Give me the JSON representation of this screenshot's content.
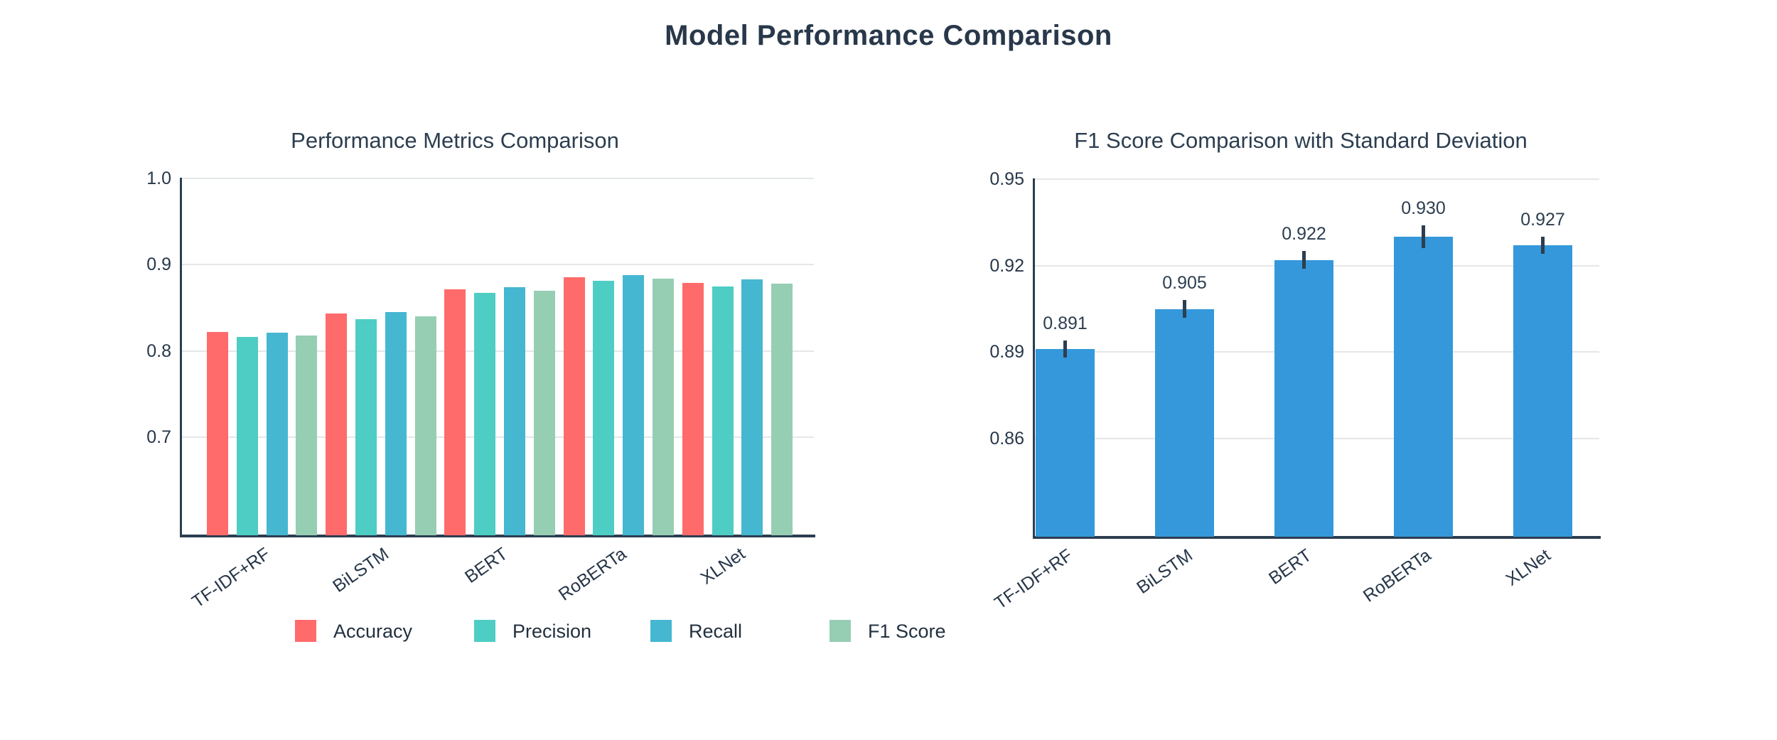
{
  "main_title": "Model Performance Comparison",
  "chart_data": [
    {
      "type": "bar",
      "title": "Performance Metrics Comparison",
      "categories": [
        "TF-IDF+RF",
        "BiLSTM",
        "BERT",
        "RoBERTa",
        "XLNet"
      ],
      "series": [
        {
          "name": "Accuracy",
          "color": "#FF6B6B",
          "values": [
            0.822,
            0.843,
            0.871,
            0.885,
            0.879
          ]
        },
        {
          "name": "Precision",
          "color": "#4ECDC4",
          "values": [
            0.816,
            0.837,
            0.867,
            0.881,
            0.875
          ]
        },
        {
          "name": "Recall",
          "color": "#45B7D1",
          "values": [
            0.821,
            0.845,
            0.874,
            0.888,
            0.883
          ]
        },
        {
          "name": "F1 Score",
          "color": "#96CEB4",
          "values": [
            0.818,
            0.84,
            0.87,
            0.884,
            0.878
          ]
        }
      ],
      "ylim": [
        0.586,
        1.0
      ],
      "yticks": [
        {
          "value": 1.0,
          "label": "1.0"
        },
        {
          "value": 0.9,
          "label": "0.9"
        },
        {
          "value": 0.8,
          "label": "0.8"
        },
        {
          "value": 0.7,
          "label": "0.7"
        }
      ],
      "grid": true,
      "legend_position": "bottom"
    },
    {
      "type": "bar",
      "title": "F1 Score Comparison with Standard Deviation",
      "categories": [
        "TF-IDF+RF",
        "BiLSTM",
        "BERT",
        "RoBERTa",
        "XLNet"
      ],
      "values": [
        0.891,
        0.905,
        0.922,
        0.93,
        0.927
      ],
      "value_labels": [
        "0.891",
        "0.905",
        "0.922",
        "0.930",
        "0.927"
      ],
      "errors": [
        0.003,
        0.003,
        0.003,
        0.004,
        0.003
      ],
      "bar_color": "#3498DB",
      "error_color": "#2c3e50",
      "ylim": [
        0.826,
        0.95
      ],
      "yticks": [
        {
          "value": 0.95,
          "label": "0.95"
        },
        {
          "value": 0.92,
          "label": "0.92"
        },
        {
          "value": 0.89,
          "label": "0.89"
        },
        {
          "value": 0.86,
          "label": "0.86"
        }
      ],
      "grid": true
    }
  ],
  "legend": {
    "items": [
      {
        "label": "Accuracy",
        "color": "#FF6B6B"
      },
      {
        "label": "Precision",
        "color": "#4ECDC4"
      },
      {
        "label": "Recall",
        "color": "#45B7D1"
      },
      {
        "label": "F1 Score",
        "color": "#96CEB4"
      }
    ]
  },
  "colors": {
    "title_text": "#28384a",
    "axis_text": "#27374a",
    "axis_line": "#2c3e50",
    "gridline": "#e4e7e9",
    "background": "#ffffff"
  }
}
